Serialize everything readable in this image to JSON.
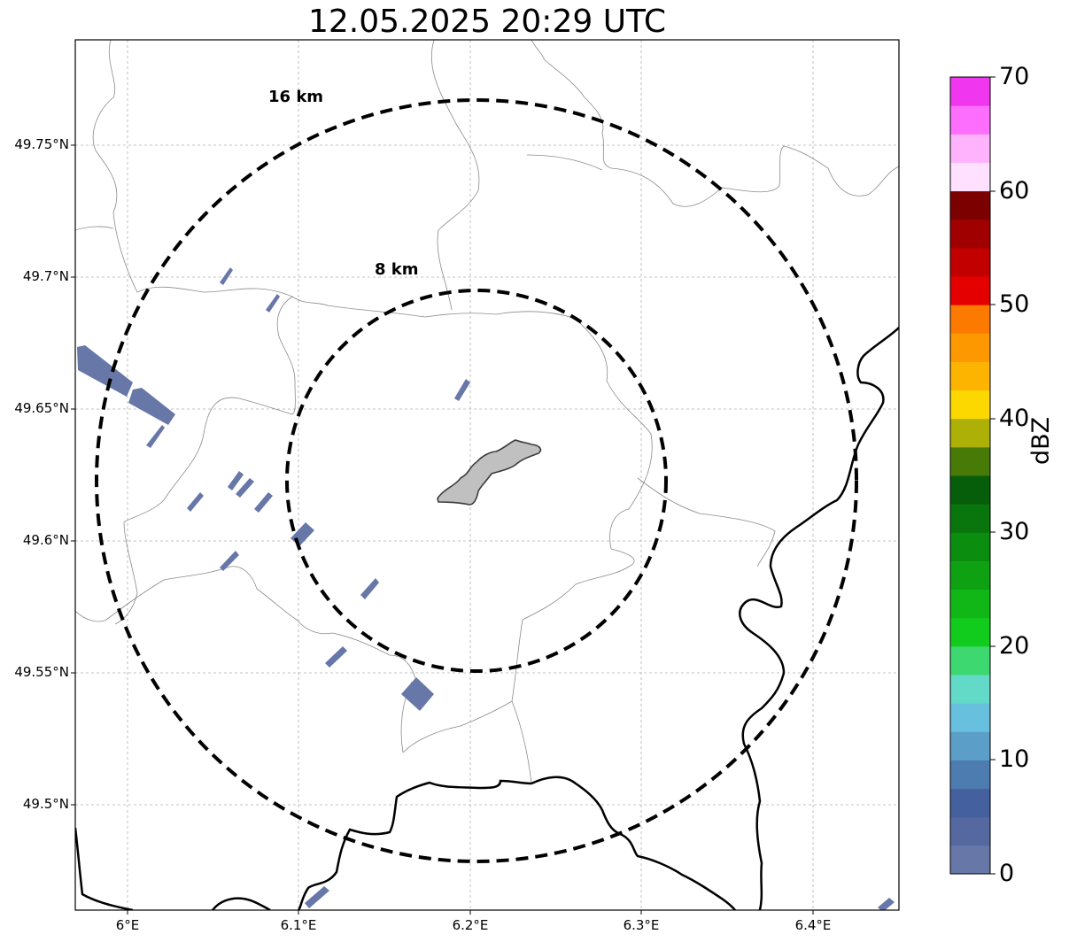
{
  "title": "12.05.2025 20:29 UTC",
  "lat_ticks": [
    "49.75°N",
    "49.7°N",
    "49.65°N",
    "49.6°N",
    "49.55°N",
    "49.5°N"
  ],
  "lon_ticks": [
    "6°E",
    "6.1°E",
    "6.2°E",
    "6.3°E",
    "6.4°E"
  ],
  "range_rings": [
    {
      "label": "8 km",
      "radius_km": 8
    },
    {
      "label": "16 km",
      "radius_km": 16
    }
  ],
  "colorbar": {
    "label": "dBZ",
    "ticks": [
      "0",
      "10",
      "20",
      "30",
      "40",
      "50",
      "60",
      "70"
    ],
    "colors": [
      "#6677a8",
      "#5668a0",
      "#45609f",
      "#4c7cb0",
      "#5b9ec8",
      "#68c0df",
      "#63d9c8",
      "#3ed870",
      "#12cc1d",
      "#11b617",
      "#0ea213",
      "#0b8d10",
      "#08760d",
      "#065e0a",
      "#477a06",
      "#adb006",
      "#fdd700",
      "#fdb400",
      "#fd9800",
      "#fd7a00",
      "#e50000",
      "#c30000",
      "#a00000",
      "#7c0000",
      "#ffe0fe",
      "#ffb3fd",
      "#fe6efe",
      "#f036ef"
    ]
  },
  "radar_echo_color": "#6677a8",
  "city_fill_color": "#c0c0c0"
}
